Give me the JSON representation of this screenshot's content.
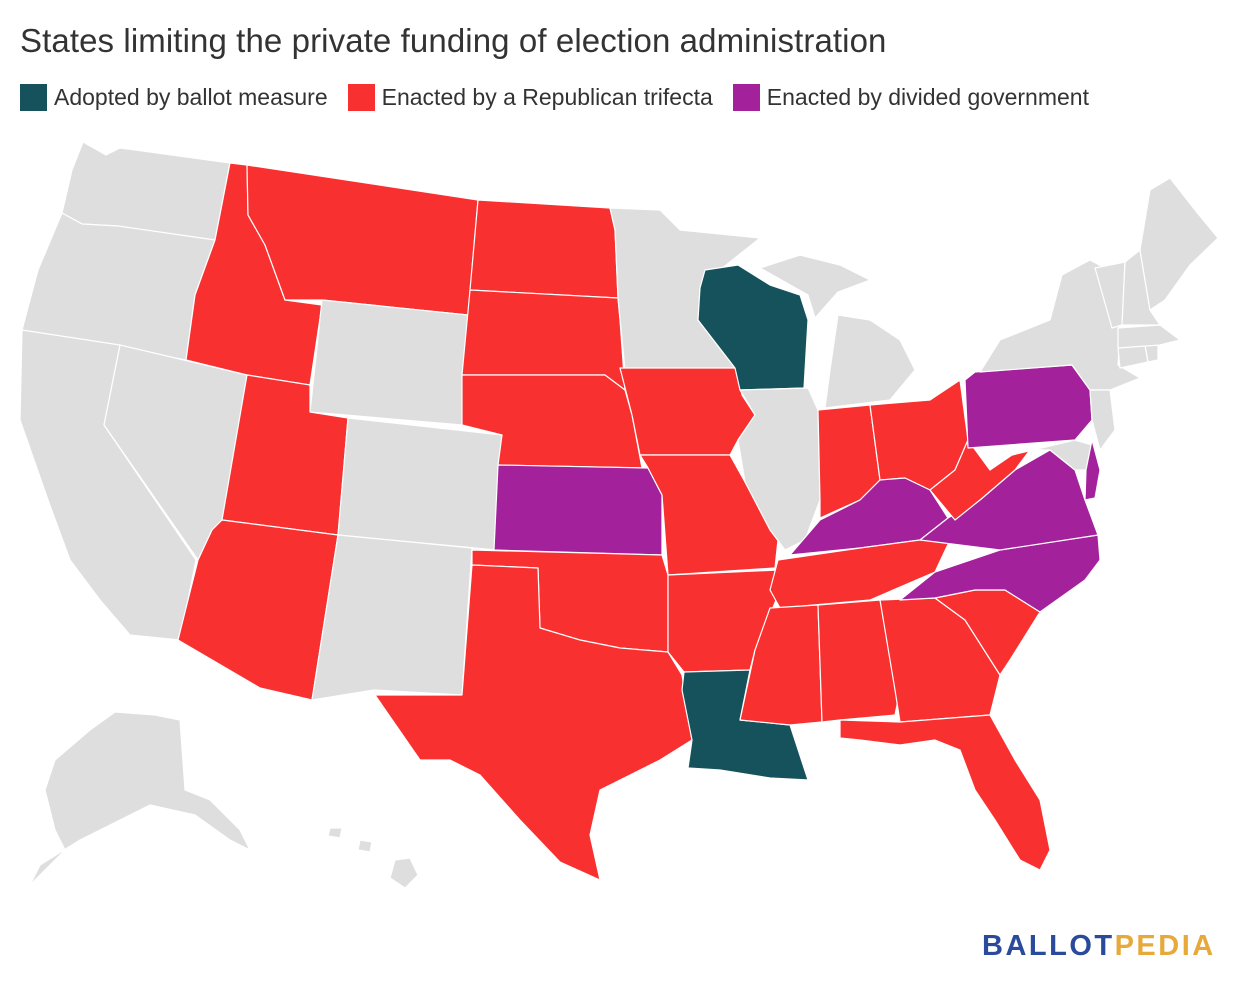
{
  "title": "States limiting the private funding of election administration",
  "colors": {
    "ballot": "#15525c",
    "trifecta": "#f93030",
    "divided": "#a3219b",
    "none": "#dedede"
  },
  "legend": [
    {
      "key": "ballot",
      "label": "Adopted by ballot measure"
    },
    {
      "key": "trifecta",
      "label": "Enacted by a Republican trifecta"
    },
    {
      "key": "divided",
      "label": "Enacted by divided government"
    }
  ],
  "map_data": {
    "ballot_measure": [
      "Wisconsin",
      "Louisiana"
    ],
    "republican_trifecta": [
      "Idaho",
      "Montana",
      "North Dakota",
      "South Dakota",
      "Nebraska",
      "Iowa",
      "Missouri",
      "Utah",
      "Arizona",
      "Oklahoma",
      "Texas",
      "Arkansas",
      "Indiana",
      "Ohio",
      "West Virginia",
      "Tennessee",
      "Mississippi",
      "Alabama",
      "Georgia",
      "South Carolina",
      "Florida"
    ],
    "divided_government": [
      "Kansas",
      "Kentucky",
      "Pennsylvania",
      "Virginia",
      "North Carolina",
      "Delaware"
    ]
  },
  "logo": {
    "part1": "BALLOT",
    "part2": "PEDIA"
  }
}
